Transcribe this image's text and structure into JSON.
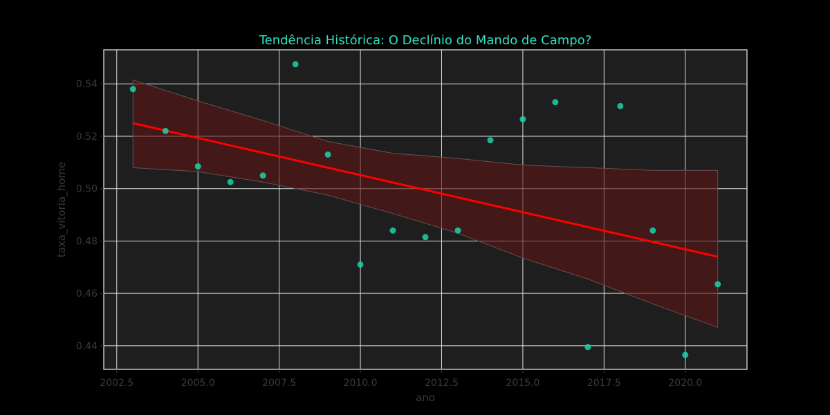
{
  "chart_data": {
    "type": "scatter",
    "title": "Tendência Histórica: O Declínio do Mando de Campo?",
    "xlabel": "ano",
    "ylabel": "taxa_vitoria_home",
    "xlim": [
      2002.1,
      2021.9
    ],
    "ylim": [
      0.431,
      0.553
    ],
    "x_ticks": [
      2002.5,
      2005.0,
      2007.5,
      2010.0,
      2012.5,
      2015.0,
      2017.5,
      2020.0
    ],
    "x_tick_labels": [
      "2002.5",
      "2005.0",
      "2007.5",
      "2010.0",
      "2012.5",
      "2015.0",
      "2017.5",
      "2020.0"
    ],
    "y_ticks": [
      0.44,
      0.46,
      0.48,
      0.5,
      0.52,
      0.54
    ],
    "y_tick_labels": [
      "0.44",
      "0.46",
      "0.48",
      "0.50",
      "0.52",
      "0.54"
    ],
    "grid": true,
    "points": [
      {
        "x": 2003,
        "y": 0.538
      },
      {
        "x": 2004,
        "y": 0.522
      },
      {
        "x": 2005,
        "y": 0.5085
      },
      {
        "x": 2006,
        "y": 0.5025
      },
      {
        "x": 2007,
        "y": 0.505
      },
      {
        "x": 2008,
        "y": 0.5475
      },
      {
        "x": 2009,
        "y": 0.513
      },
      {
        "x": 2010,
        "y": 0.471
      },
      {
        "x": 2011,
        "y": 0.484
      },
      {
        "x": 2012,
        "y": 0.4815
      },
      {
        "x": 2013,
        "y": 0.484
      },
      {
        "x": 2014,
        "y": 0.5185
      },
      {
        "x": 2015,
        "y": 0.5265
      },
      {
        "x": 2016,
        "y": 0.533
      },
      {
        "x": 2017,
        "y": 0.4395
      },
      {
        "x": 2018,
        "y": 0.5315
      },
      {
        "x": 2019,
        "y": 0.484
      },
      {
        "x": 2020,
        "y": 0.4365
      },
      {
        "x": 2021,
        "y": 0.4635
      }
    ],
    "regression": {
      "x": [
        2003,
        2021
      ],
      "y": [
        0.525,
        0.474
      ]
    },
    "confidence_band": {
      "x": [
        2003,
        2005,
        2007,
        2009,
        2011,
        2013,
        2015,
        2017,
        2019,
        2021
      ],
      "upper": [
        0.5415,
        0.5335,
        0.526,
        0.518,
        0.5135,
        0.5115,
        0.509,
        0.508,
        0.507,
        0.507
      ],
      "lower": [
        0.508,
        0.5065,
        0.5025,
        0.4975,
        0.4905,
        0.483,
        0.4735,
        0.4655,
        0.456,
        0.447
      ]
    },
    "colors": {
      "background": "#000000",
      "plot_background": "#1e1e1e",
      "grid": "#e0e0e0",
      "points": "#19d3aa",
      "regression": "#ff0000",
      "band": "#5a1414",
      "title": "#2fe0c0",
      "labels": "#3a3a3a"
    }
  }
}
